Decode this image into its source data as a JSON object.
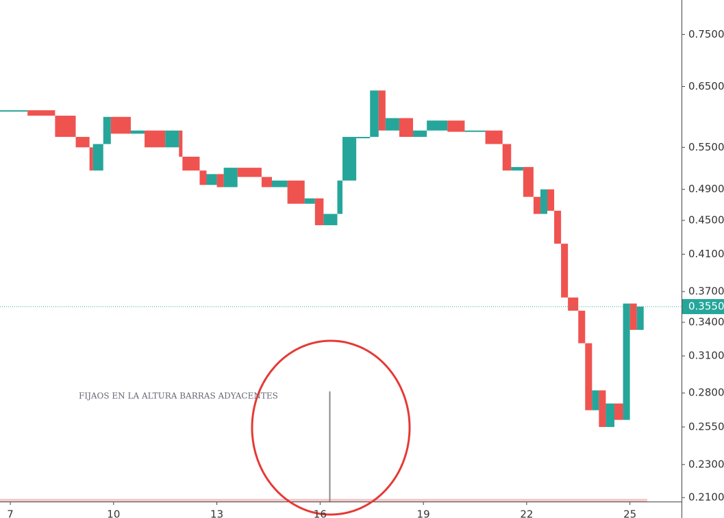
{
  "chart_data": {
    "type": "candle-line",
    "annotation": "FIJAOS  EN LA ALTURA BARRAS ADYACENTES",
    "x": [
      6.7,
      7.5,
      8.3,
      8.9,
      9.3,
      9.4,
      9.7,
      9.92,
      10.5,
      10.9,
      11.5,
      11.9,
      12.0,
      12.5,
      12.7,
      13.0,
      13.2,
      13.6,
      14.3,
      14.6,
      15.05,
      15.55,
      15.85,
      16.1,
      16.5,
      16.65,
      17.05,
      17.45,
      17.7,
      17.9,
      18.3,
      18.7,
      19.1,
      19.7,
      20.2,
      20.8,
      21.3,
      21.55,
      21.9,
      22.2,
      22.4,
      22.6,
      22.8,
      23.0,
      23.2,
      23.5,
      23.7,
      23.9,
      24.1,
      24.3,
      24.55,
      24.8,
      25.0,
      25.2,
      25.4
    ],
    "values": [
      0.609,
      0.609,
      0.6,
      0.566,
      0.55,
      0.516,
      0.555,
      0.598,
      0.571,
      0.576,
      0.55,
      0.576,
      0.536,
      0.516,
      0.496,
      0.511,
      0.493,
      0.52,
      0.507,
      0.493,
      0.502,
      0.471,
      0.478,
      0.444,
      0.458,
      0.502,
      0.566,
      0.566,
      0.643,
      0.576,
      0.596,
      0.566,
      0.576,
      0.592,
      0.574,
      0.576,
      0.555,
      0.516,
      0.521,
      0.48,
      0.458,
      0.49,
      0.462,
      0.422,
      0.364,
      0.351,
      0.321,
      0.267,
      0.282,
      0.255,
      0.272,
      0.26,
      0.358,
      0.333,
      0.355
    ],
    "up_color": "#26a69a",
    "down_color": "#ef5350",
    "last_price": {
      "value": 0.355,
      "label": "0.3550"
    },
    "log_scale": true,
    "xlim": [
      6.7,
      26.5
    ],
    "xticks": [
      7,
      10,
      13,
      16,
      19,
      22,
      25
    ],
    "ylim": [
      0.2085,
      0.7706
    ],
    "yticks": [
      {
        "value": 0.75,
        "label": "0.7500"
      },
      {
        "value": 0.65,
        "label": "0.6500"
      },
      {
        "value": 0.55,
        "label": "0.5500"
      },
      {
        "value": 0.49,
        "label": "0.4900"
      },
      {
        "value": 0.45,
        "label": "0.4500"
      },
      {
        "value": 0.41,
        "label": "0.4100"
      },
      {
        "value": 0.37,
        "label": "0.3700"
      },
      {
        "value": 0.34,
        "label": "0.3400"
      },
      {
        "value": 0.31,
        "label": "0.3100"
      },
      {
        "value": 0.28,
        "label": "0.2800"
      },
      {
        "value": 0.255,
        "label": "0.2550"
      },
      {
        "value": 0.23,
        "label": "0.2300"
      },
      {
        "value": 0.21,
        "label": "0.2100"
      }
    ]
  }
}
